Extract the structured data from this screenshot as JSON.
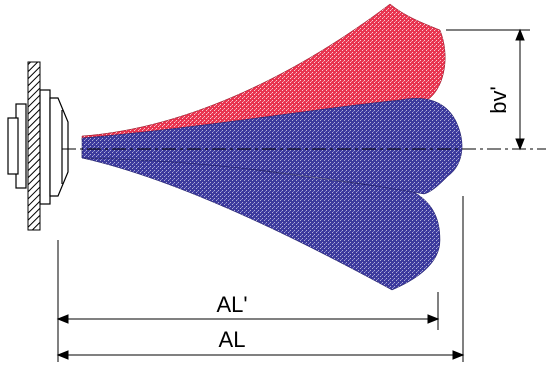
{
  "labels": {
    "vertical_dim": "bv'",
    "throw_reduced": "AL'",
    "throw_total": "AL"
  },
  "colors": {
    "warm_air": "#e8344f",
    "cold_air": "#3c3a9c",
    "outline": "#000000",
    "wall_hatch": "#000000"
  }
}
